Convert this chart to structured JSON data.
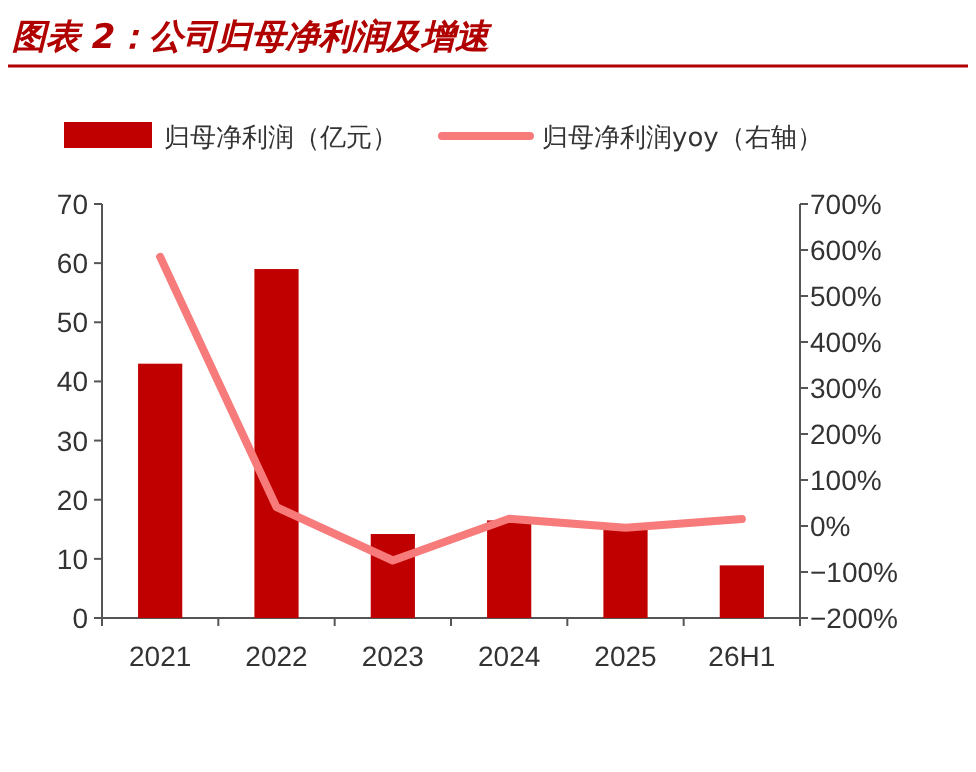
{
  "chart_data": {
    "type": "bar",
    "title": "图表 2：公司归母净利润及增速",
    "categories": [
      "2021",
      "2022",
      "2023",
      "2024",
      "2025",
      "26H1"
    ],
    "series": [
      {
        "name": "归母净利润（亿元）",
        "color": "#c00000",
        "values": [
          43,
          59,
          14.2,
          16.5,
          15.6,
          8.9
        ]
      },
      {
        "name": "归母净利润yoy（右轴）",
        "type": "line",
        "axis": "y2",
        "color": "#f77b7b",
        "values": [
          585,
          41,
          -75,
          16,
          -4,
          15
        ]
      }
    ],
    "ylim": [
      0,
      70
    ],
    "yticks": [
      0,
      10,
      20,
      30,
      40,
      50,
      60,
      70
    ],
    "y2lim": [
      -200,
      700
    ],
    "y2ticks": [
      {
        "value": -200,
        "label": "−200%"
      },
      {
        "value": -100,
        "label": "−100%"
      },
      {
        "value": 0,
        "label": "0%"
      },
      {
        "value": 100,
        "label": "100%"
      },
      {
        "value": 200,
        "label": "200%"
      },
      {
        "value": 300,
        "label": "300%"
      },
      {
        "value": 400,
        "label": "400%"
      },
      {
        "value": 500,
        "label": "500%"
      },
      {
        "value": 600,
        "label": "600%"
      },
      {
        "value": 700,
        "label": "700%"
      }
    ],
    "grid": false,
    "legend": "top"
  }
}
